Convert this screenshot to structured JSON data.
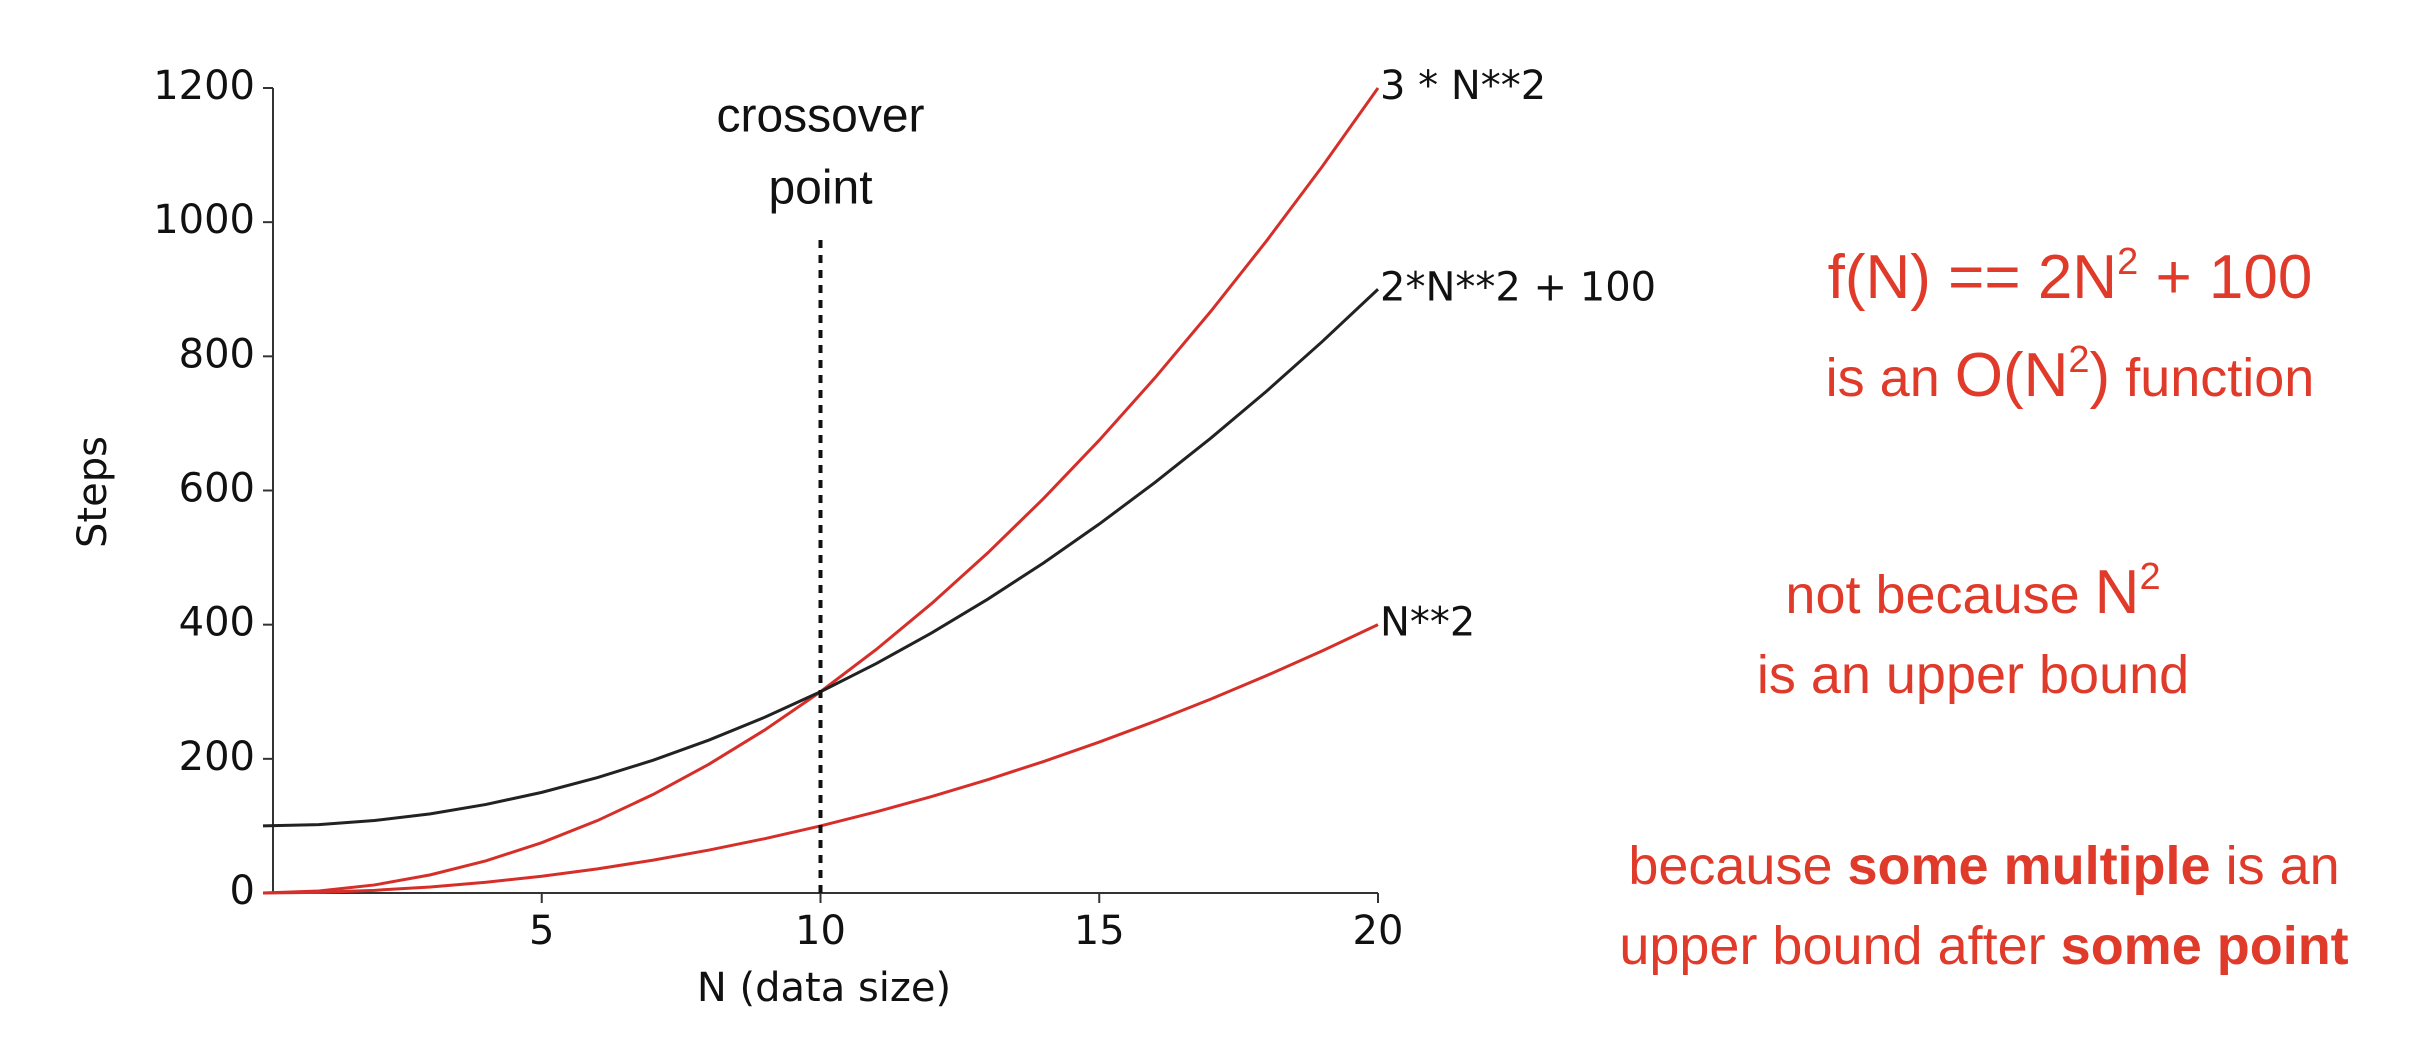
{
  "chart_data": {
    "type": "line",
    "x": [
      0,
      1,
      2,
      3,
      4,
      5,
      6,
      7,
      8,
      9,
      10,
      11,
      12,
      13,
      14,
      15,
      16,
      17,
      18,
      19,
      20
    ],
    "series": [
      {
        "name": "3 * N**2",
        "color": "#d62f2a",
        "values": [
          0,
          3,
          12,
          27,
          48,
          75,
          108,
          147,
          192,
          243,
          300,
          363,
          432,
          507,
          588,
          675,
          768,
          867,
          972,
          1083,
          1200
        ]
      },
      {
        "name": "2*N**2 + 100",
        "color": "#222222",
        "values": [
          100,
          102,
          108,
          118,
          132,
          150,
          172,
          198,
          228,
          262,
          300,
          342,
          388,
          438,
          492,
          550,
          612,
          678,
          748,
          822,
          900
        ]
      },
      {
        "name": "N**2",
        "color": "#d62f2a",
        "values": [
          0,
          1,
          4,
          9,
          16,
          25,
          36,
          49,
          64,
          81,
          100,
          121,
          144,
          169,
          196,
          225,
          256,
          289,
          324,
          361,
          400
        ]
      }
    ],
    "xlim": [
      0,
      20
    ],
    "xticks": [
      5,
      10,
      15,
      20
    ],
    "ylim": [
      0,
      1200
    ],
    "yticks": [
      0,
      200,
      400,
      600,
      800,
      1000,
      1200
    ],
    "x_label": "N (data size)",
    "y_label": "Steps",
    "grid": false,
    "annotations": [
      {
        "text": [
          "crossover",
          "point"
        ],
        "x": 10,
        "y": [
          0,
          975
        ]
      }
    ]
  },
  "notes": [
    {
      "lines": [
        [
          {
            "text": "f(N) == 2N",
            "style": "big"
          },
          {
            "text": "2",
            "style": "big sup"
          },
          {
            "text": " + 100",
            "style": "big"
          }
        ],
        [
          {
            "text": "is an ",
            "style": "plain"
          },
          {
            "text": "O(N",
            "style": "big"
          },
          {
            "text": "2",
            "style": "big sup"
          },
          {
            "text": ")",
            "style": "big"
          },
          {
            "text": " function",
            "style": "plain"
          }
        ]
      ]
    },
    {
      "lines": [
        [
          {
            "text": "not because ",
            "style": "plain"
          },
          {
            "text": "N",
            "style": "big"
          },
          {
            "text": "2",
            "style": "big sup"
          }
        ],
        [
          {
            "text": "is an upper bound",
            "style": "plain"
          }
        ]
      ]
    },
    {
      "lines": [
        [
          {
            "text": "because ",
            "style": "plain"
          },
          {
            "text": "some multiple",
            "style": "bold"
          },
          {
            "text": " is an",
            "style": "plain"
          }
        ],
        [
          {
            "text": "upper bound after ",
            "style": "plain"
          },
          {
            "text": "some point",
            "style": "bold"
          }
        ]
      ]
    }
  ]
}
